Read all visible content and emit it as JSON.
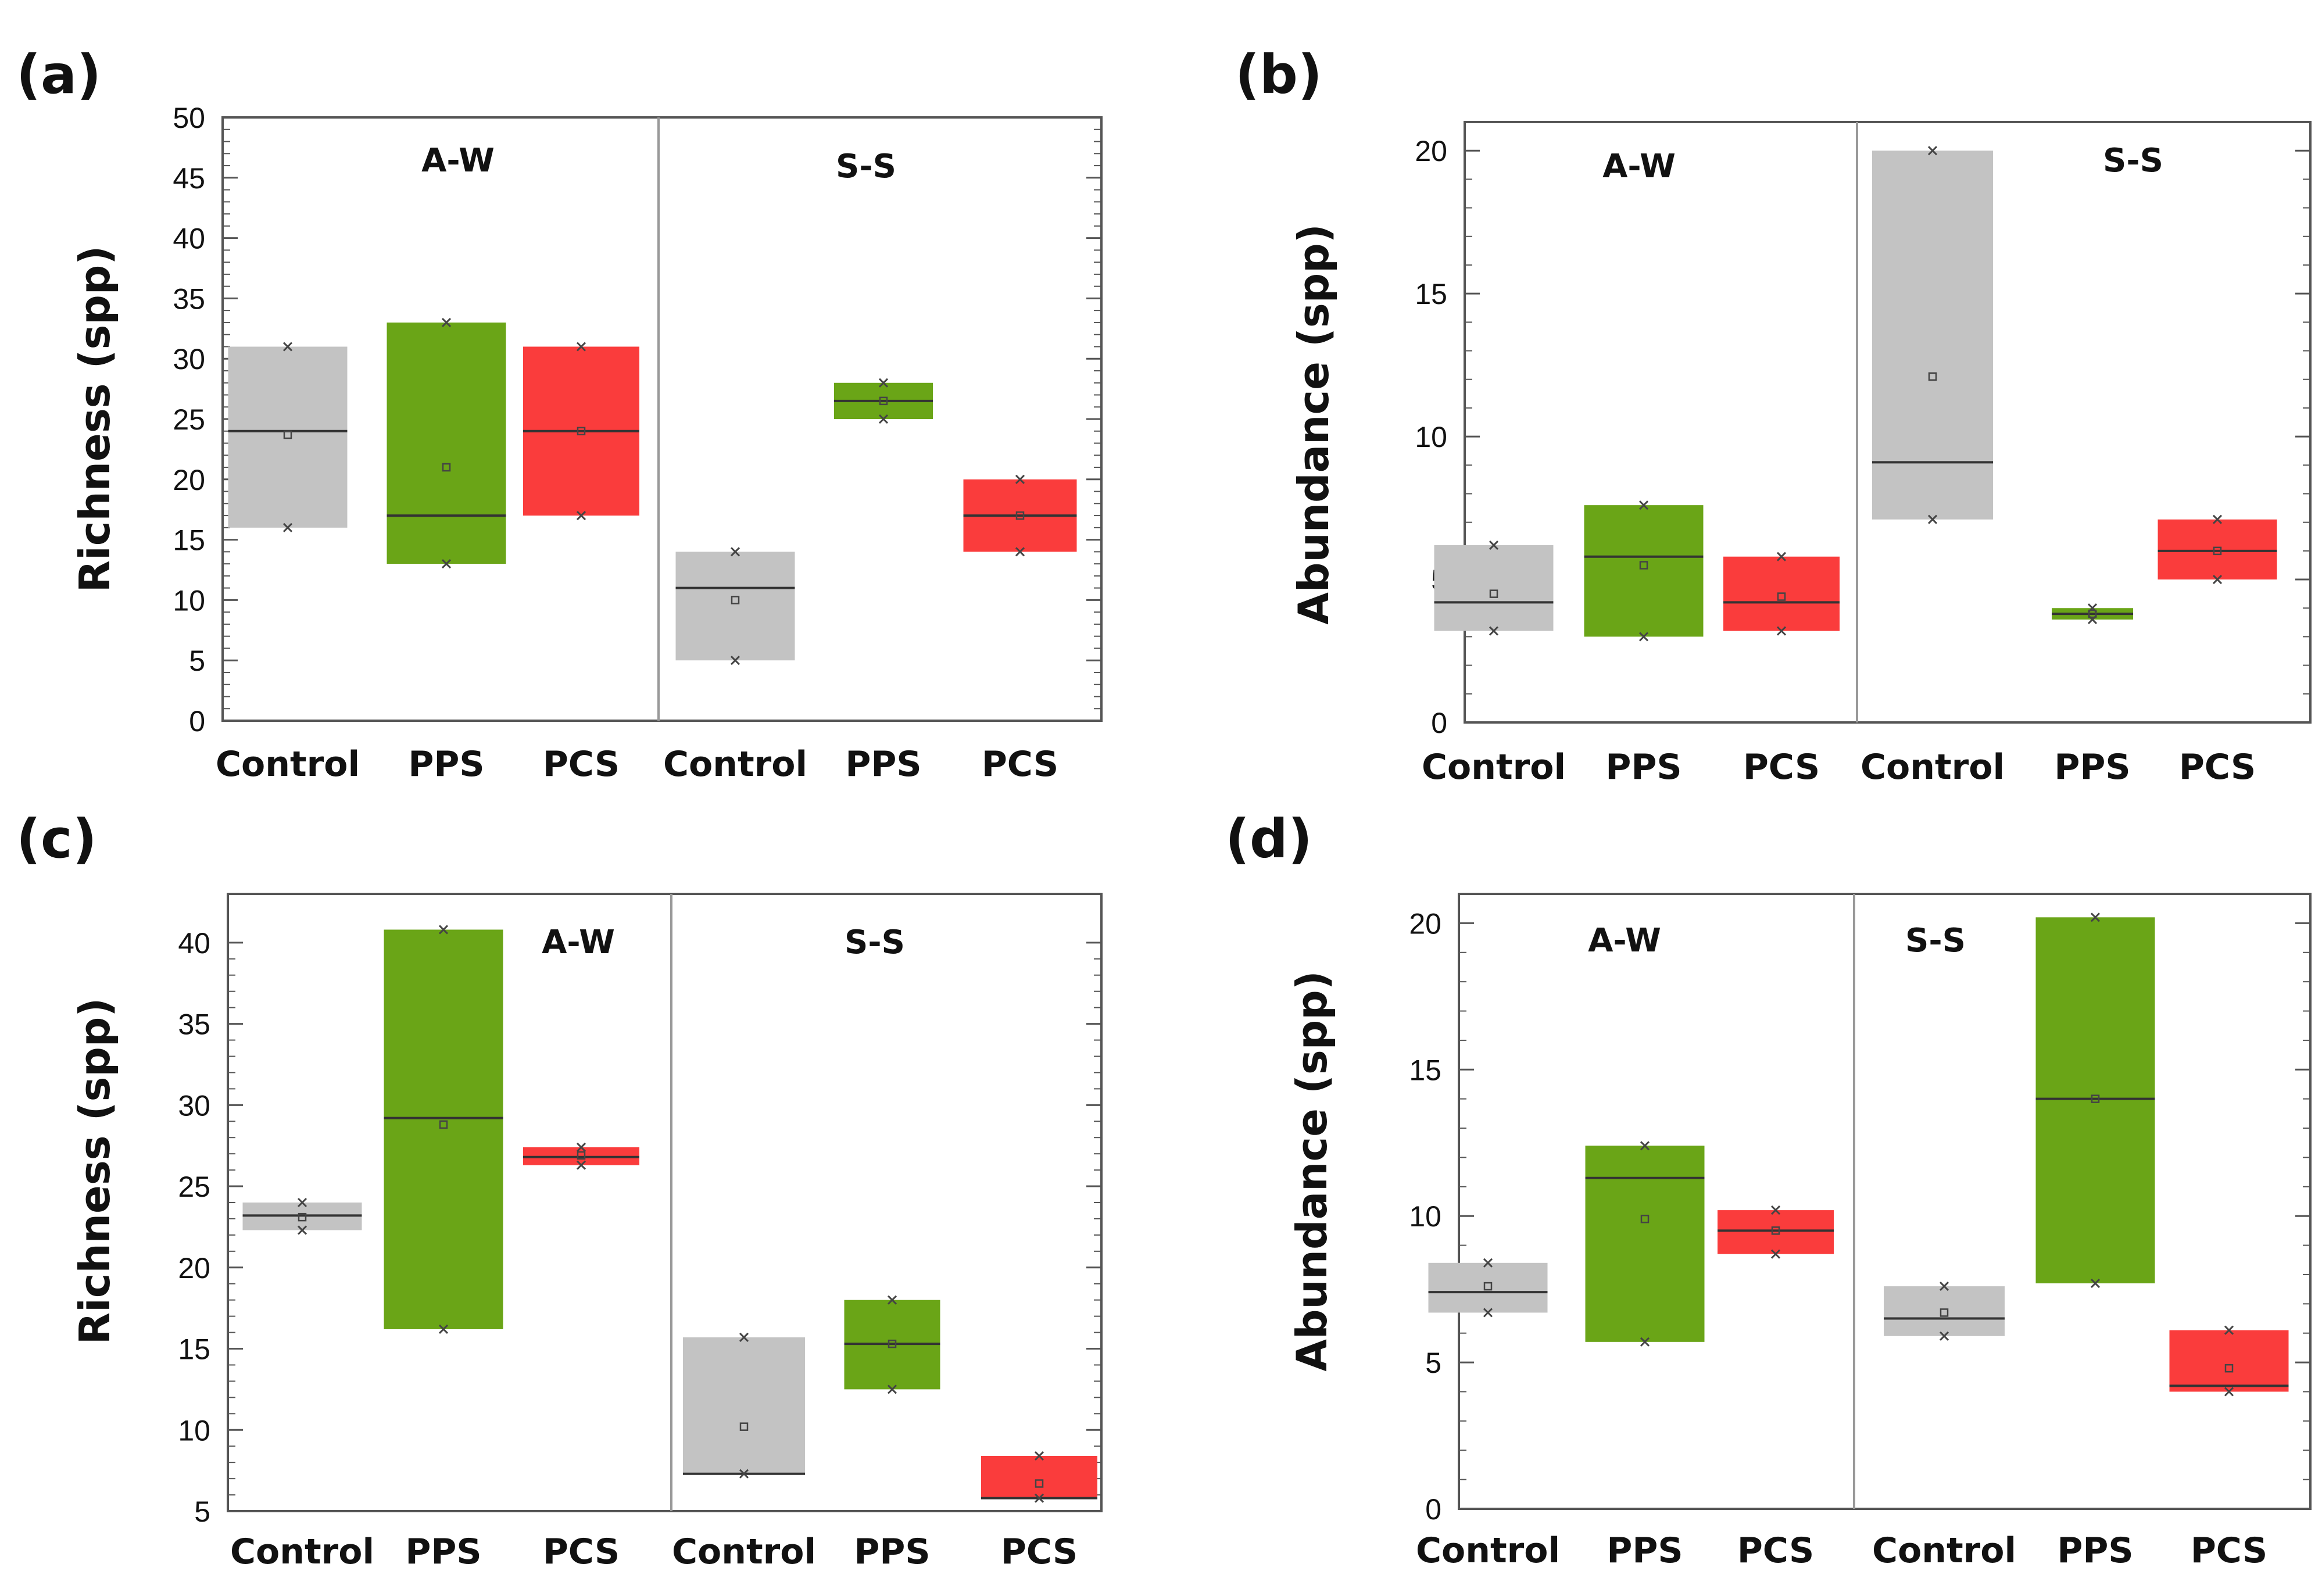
{
  "colors": {
    "control": "#c3c3c3",
    "pps": "#6aa517",
    "pcs": "#fa3c3c",
    "axis": "#555555",
    "text": "#111111"
  },
  "chart_data": [
    {
      "panel": "(a)",
      "type": "box",
      "ylabel": "Richness (spp)",
      "ylim": [
        0,
        50
      ],
      "yticks": [
        "0",
        "5",
        "10",
        "15",
        "20",
        "25",
        "30",
        "35",
        "40",
        "45",
        "50"
      ],
      "groups": [
        "A-W",
        "S-S"
      ],
      "categories": [
        "Control",
        "PPS",
        "PCS",
        "Control",
        "PPS",
        "PCS"
      ],
      "boxes": [
        {
          "group": "A-W",
          "category": "Control",
          "color": "control",
          "min": 16,
          "q1": 16,
          "median": 24,
          "mean": 23.7,
          "q3": 31,
          "max": 31
        },
        {
          "group": "A-W",
          "category": "PPS",
          "color": "pps",
          "min": 13,
          "q1": 13,
          "median": 17,
          "mean": 21,
          "q3": 33,
          "max": 33
        },
        {
          "group": "A-W",
          "category": "PCS",
          "color": "pcs",
          "min": 17,
          "q1": 17,
          "median": 24,
          "mean": 24,
          "q3": 31,
          "max": 31
        },
        {
          "group": "S-S",
          "category": "Control",
          "color": "control",
          "min": 5,
          "q1": 5,
          "median": 11,
          "mean": 10,
          "q3": 14,
          "max": 14
        },
        {
          "group": "S-S",
          "category": "PPS",
          "color": "pps",
          "min": 25,
          "q1": 25,
          "median": 26.5,
          "mean": 26.5,
          "q3": 28,
          "max": 28
        },
        {
          "group": "S-S",
          "category": "PCS",
          "color": "pcs",
          "min": 14,
          "q1": 14,
          "median": 17,
          "mean": 17,
          "q3": 20,
          "max": 20
        }
      ]
    },
    {
      "panel": "(b)",
      "type": "box",
      "ylabel": "Abundance (spp)",
      "ylim": [
        0,
        21
      ],
      "yticks": [
        "0",
        "5",
        "10",
        "15",
        "20"
      ],
      "groups": [
        "A-W",
        "S-S"
      ],
      "categories": [
        "Control",
        "PPS",
        "PCS",
        "Control",
        "PPS",
        "PCS"
      ],
      "boxes": [
        {
          "group": "A-W",
          "category": "Control",
          "color": "control",
          "min": 3.2,
          "q1": 3.2,
          "median": 4.2,
          "mean": 4.5,
          "q3": 6.2,
          "max": 6.2
        },
        {
          "group": "A-W",
          "category": "PPS",
          "color": "pps",
          "min": 3.0,
          "q1": 3.0,
          "median": 5.8,
          "mean": 5.5,
          "q3": 7.6,
          "max": 7.6
        },
        {
          "group": "A-W",
          "category": "PCS",
          "color": "pcs",
          "min": 3.2,
          "q1": 3.2,
          "median": 4.2,
          "mean": 4.4,
          "q3": 5.8,
          "max": 5.8
        },
        {
          "group": "S-S",
          "category": "Control",
          "color": "control",
          "min": 7.1,
          "q1": 7.1,
          "median": 9.1,
          "mean": 12.1,
          "q3": 20,
          "max": 20
        },
        {
          "group": "S-S",
          "category": "PPS",
          "color": "pps",
          "min": 3.6,
          "q1": 3.6,
          "median": 3.8,
          "mean": 3.8,
          "q3": 4.0,
          "max": 4.0
        },
        {
          "group": "S-S",
          "category": "PCS",
          "color": "pcs",
          "min": 5.0,
          "q1": 5.0,
          "median": 6.0,
          "mean": 6.0,
          "q3": 7.1,
          "max": 7.1
        }
      ]
    },
    {
      "panel": "(c)",
      "type": "box",
      "ylabel": "Richness (spp)",
      "ylim": [
        5,
        43
      ],
      "yticks": [
        "5",
        "10",
        "15",
        "20",
        "25",
        "30",
        "35",
        "40"
      ],
      "groups": [
        "A-W",
        "S-S"
      ],
      "categories": [
        "Control",
        "PPS",
        "PCS",
        "Control",
        "PPS",
        "PCS"
      ],
      "boxes": [
        {
          "group": "A-W",
          "category": "Control",
          "color": "control",
          "min": 22.3,
          "q1": 22.3,
          "median": 23.2,
          "mean": 23.1,
          "q3": 24,
          "max": 24
        },
        {
          "group": "A-W",
          "category": "PPS",
          "color": "pps",
          "min": 16.2,
          "q1": 16.2,
          "median": 29.2,
          "mean": 28.8,
          "q3": 40.8,
          "max": 40.8
        },
        {
          "group": "A-W",
          "category": "PCS",
          "color": "pcs",
          "min": 26.3,
          "q1": 26.3,
          "median": 26.8,
          "mean": 26.9,
          "q3": 27.4,
          "max": 27.4
        },
        {
          "group": "S-S",
          "category": "Control",
          "color": "control",
          "min": 7.3,
          "q1": 7.3,
          "median": 7.3,
          "mean": 10.2,
          "q3": 15.7,
          "max": 15.7
        },
        {
          "group": "S-S",
          "category": "PPS",
          "color": "pps",
          "min": 12.5,
          "q1": 12.5,
          "median": 15.3,
          "mean": 15.3,
          "q3": 18,
          "max": 18
        },
        {
          "group": "S-S",
          "category": "PCS",
          "color": "pcs",
          "min": 5.8,
          "q1": 5.8,
          "median": 5.8,
          "mean": 6.7,
          "q3": 8.4,
          "max": 8.4
        }
      ]
    },
    {
      "panel": "(d)",
      "type": "box",
      "ylabel": "Abundance (spp)",
      "ylim": [
        0,
        21
      ],
      "yticks": [
        "0",
        "5",
        "10",
        "15",
        "20"
      ],
      "groups": [
        "A-W",
        "S-S"
      ],
      "categories": [
        "Control",
        "PPS",
        "PCS",
        "Control",
        "PPS",
        "PCS"
      ],
      "boxes": [
        {
          "group": "A-W",
          "category": "Control",
          "color": "control",
          "min": 6.7,
          "q1": 6.7,
          "median": 7.4,
          "mean": 7.6,
          "q3": 8.4,
          "max": 8.4
        },
        {
          "group": "A-W",
          "category": "PPS",
          "color": "pps",
          "min": 5.7,
          "q1": 5.7,
          "median": 11.3,
          "mean": 9.9,
          "q3": 12.4,
          "max": 12.4
        },
        {
          "group": "A-W",
          "category": "PCS",
          "color": "pcs",
          "min": 8.7,
          "q1": 8.7,
          "median": 9.5,
          "mean": 9.5,
          "q3": 10.2,
          "max": 10.2
        },
        {
          "group": "S-S",
          "category": "Control",
          "color": "control",
          "min": 5.9,
          "q1": 5.9,
          "median": 6.5,
          "mean": 6.7,
          "q3": 7.6,
          "max": 7.6
        },
        {
          "group": "S-S",
          "category": "PPS",
          "color": "pps",
          "min": 7.7,
          "q1": 7.7,
          "median": 14,
          "mean": 14,
          "q3": 20.2,
          "max": 20.2
        },
        {
          "group": "S-S",
          "category": "PCS",
          "color": "pcs",
          "min": 4.0,
          "q1": 4.0,
          "median": 4.2,
          "mean": 4.8,
          "q3": 6.1,
          "max": 6.1
        }
      ]
    }
  ]
}
